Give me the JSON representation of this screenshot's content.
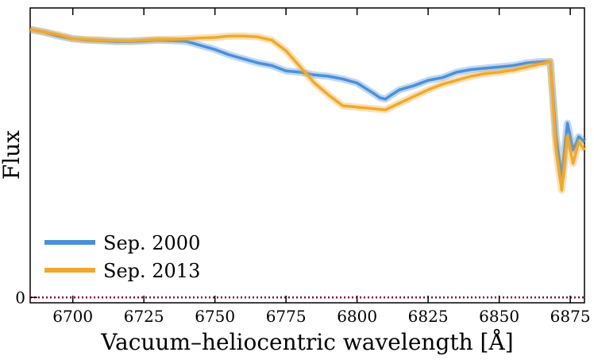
{
  "chart_data": {
    "type": "line",
    "title": "",
    "xlabel": "Vacuum–heliocentric wavelength [Å]",
    "ylabel": "Flux",
    "xlim": [
      6685,
      6880
    ],
    "ylim": [
      -0.02,
      1.08
    ],
    "xticks": [
      6700,
      6725,
      6750,
      6775,
      6800,
      6825,
      6850,
      6875
    ],
    "xtick_labels": [
      "6700",
      "6725",
      "6750",
      "6775",
      "6800",
      "6825",
      "6850",
      "6875"
    ],
    "yticks": [
      0
    ],
    "ytick_labels": [
      "0"
    ],
    "zero_line": {
      "y": 0,
      "style": "dotted",
      "color": "#8b0a3a"
    },
    "legend_position": "lower-left",
    "series": [
      {
        "name": "Sep. 2000",
        "color": "#4a90d9",
        "x": [
          6685,
          6690,
          6695,
          6700,
          6705,
          6710,
          6715,
          6720,
          6725,
          6730,
          6735,
          6740,
          6745,
          6750,
          6755,
          6760,
          6765,
          6770,
          6775,
          6780,
          6785,
          6790,
          6795,
          6800,
          6803,
          6806,
          6808,
          6810,
          6812,
          6815,
          6820,
          6825,
          6830,
          6835,
          6840,
          6845,
          6850,
          6855,
          6860,
          6865,
          6868,
          6870,
          6872,
          6874,
          6876,
          6878,
          6880
        ],
        "values": [
          1.0,
          0.99,
          0.975,
          0.965,
          0.96,
          0.958,
          0.955,
          0.955,
          0.957,
          0.96,
          0.958,
          0.955,
          0.94,
          0.925,
          0.905,
          0.89,
          0.875,
          0.865,
          0.845,
          0.84,
          0.83,
          0.825,
          0.815,
          0.8,
          0.78,
          0.76,
          0.745,
          0.74,
          0.755,
          0.775,
          0.79,
          0.81,
          0.82,
          0.84,
          0.85,
          0.855,
          0.86,
          0.865,
          0.875,
          0.88,
          0.88,
          0.6,
          0.45,
          0.65,
          0.55,
          0.6,
          0.58
        ]
      },
      {
        "name": "Sep. 2013",
        "color": "#f0a92e",
        "x": [
          6685,
          6690,
          6695,
          6700,
          6705,
          6710,
          6715,
          6720,
          6725,
          6730,
          6735,
          6740,
          6745,
          6750,
          6755,
          6760,
          6765,
          6770,
          6775,
          6780,
          6785,
          6790,
          6795,
          6800,
          6805,
          6810,
          6815,
          6820,
          6825,
          6830,
          6835,
          6840,
          6845,
          6850,
          6855,
          6860,
          6865,
          6868,
          6870,
          6872,
          6874,
          6876,
          6878,
          6880
        ],
        "values": [
          1.0,
          0.99,
          0.98,
          0.965,
          0.962,
          0.96,
          0.958,
          0.957,
          0.96,
          0.962,
          0.963,
          0.965,
          0.968,
          0.97,
          0.975,
          0.975,
          0.972,
          0.96,
          0.92,
          0.86,
          0.8,
          0.755,
          0.715,
          0.71,
          0.705,
          0.7,
          0.725,
          0.75,
          0.775,
          0.795,
          0.81,
          0.825,
          0.835,
          0.84,
          0.848,
          0.86,
          0.872,
          0.88,
          0.55,
          0.4,
          0.6,
          0.5,
          0.58,
          0.55
        ]
      }
    ]
  }
}
